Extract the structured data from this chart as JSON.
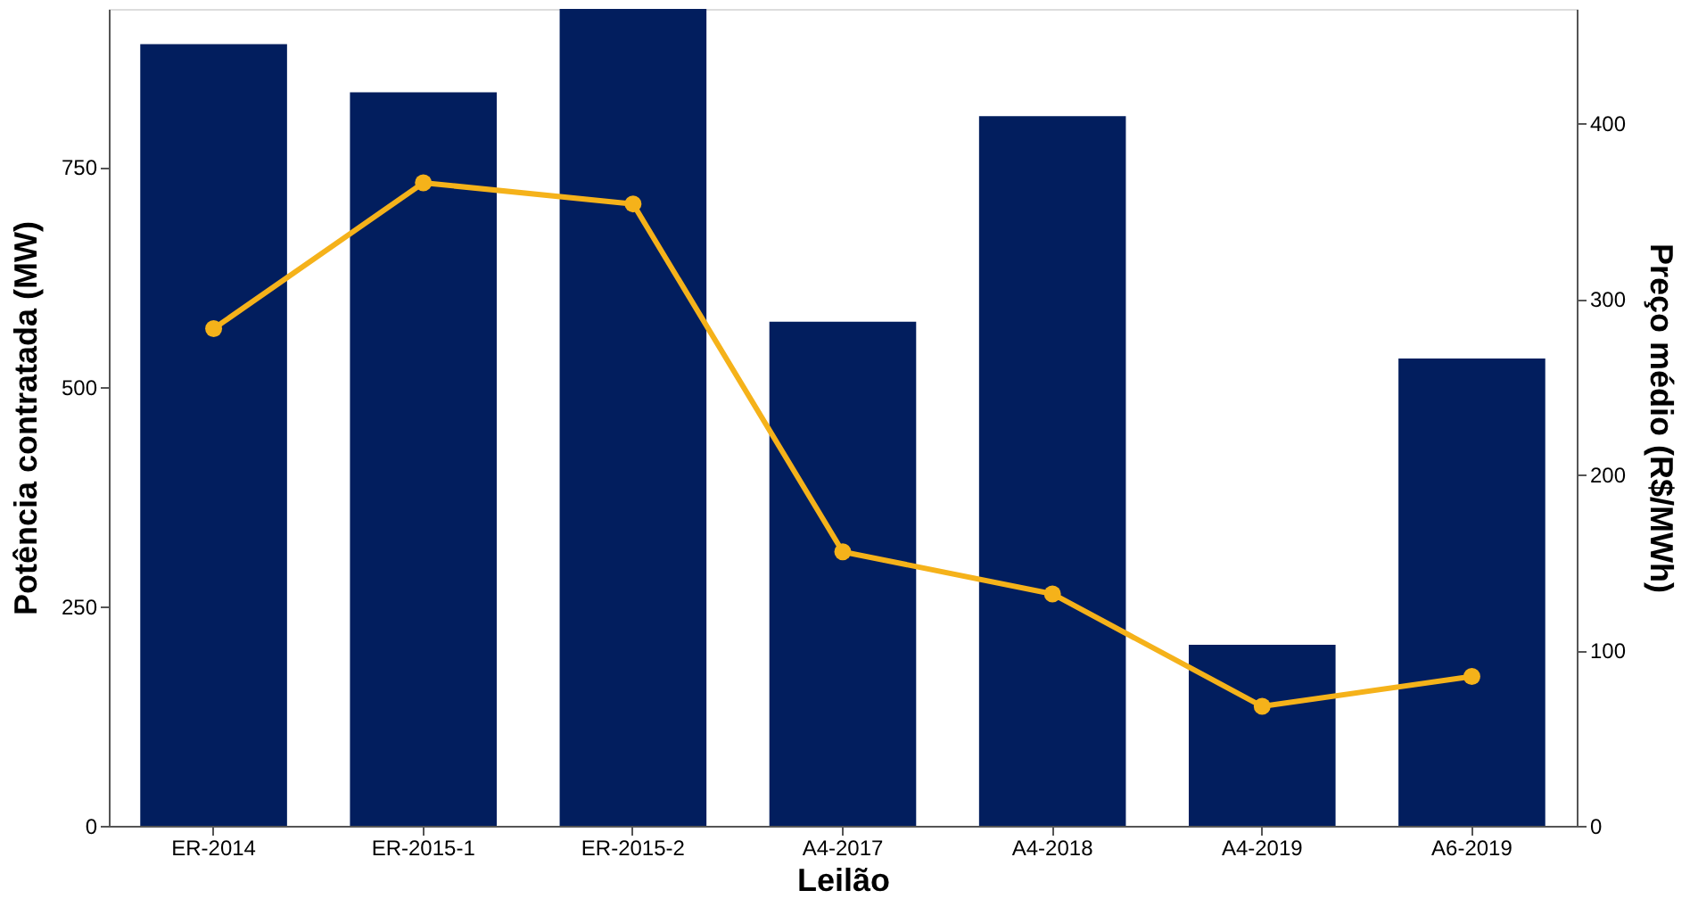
{
  "chart_data": {
    "type": "bar",
    "xlabel": "Leilão",
    "ylabel": "Potência contratada (MW)",
    "y2label": "Preço médio (R$/MWh)",
    "categories": [
      "ER-2014",
      "ER-2015-1",
      "ER-2015-2",
      "A4-2017",
      "A4-2018",
      "A4-2019",
      "A6-2019"
    ],
    "series": [
      {
        "color": "#021e5e",
        "values": [
          890,
          835,
          930,
          574,
          808,
          206,
          532
        ]
      },
      {
        "type": "line",
        "axis": "y2",
        "color": "#f5b21a",
        "marker": "circle",
        "line_style": "solid",
        "values": [
          283,
          366,
          354,
          156,
          132,
          68,
          85
        ]
      }
    ],
    "ylim": [
      0,
      930
    ],
    "yticks": [
      0,
      250,
      500,
      750
    ],
    "y2lim": [
      0,
      465
    ],
    "y2ticks": [
      0,
      100,
      200,
      300,
      400
    ],
    "grid": false
  }
}
